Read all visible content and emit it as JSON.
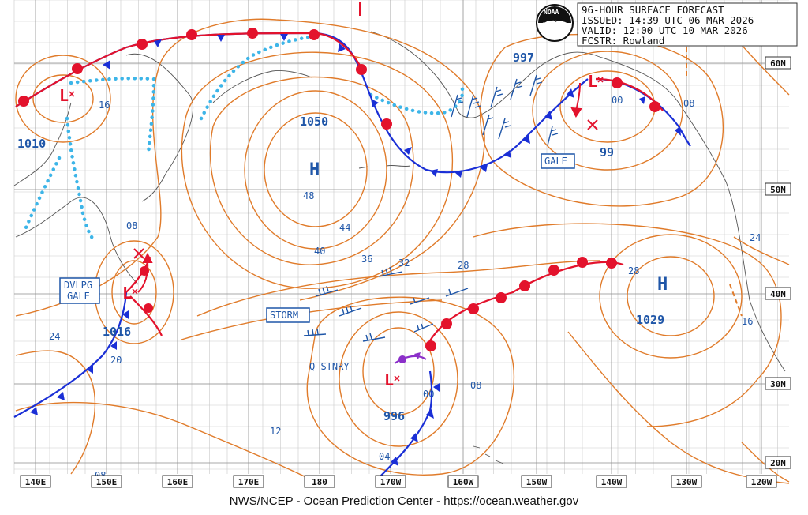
{
  "header": {
    "line1": "96-HOUR SURFACE FORECAST",
    "line2": "ISSUED: 14:39 UTC 06 MAR 2026",
    "line3": "VALID:  12:00 UTC 10 MAR 2026",
    "line4": "FCSTR:  Rowland"
  },
  "logo": {
    "name": "noaa-logo",
    "text": "NOAA"
  },
  "footer": "NWS/NCEP - Ocean Prediction Center - https://ocean.weather.gov",
  "lon_labels": [
    "140E",
    "150E",
    "160E",
    "170E",
    "180",
    "170W",
    "160W",
    "150W",
    "140W",
    "130W",
    "120W"
  ],
  "lat_labels": [
    "60N",
    "50N",
    "40N",
    "30N",
    "20N"
  ],
  "pressure_centers": [
    {
      "type": "H",
      "value": "1050"
    },
    {
      "type": "H",
      "value": "1029"
    },
    {
      "type": "L",
      "value": "997"
    },
    {
      "type": "L",
      "value": "99"
    },
    {
      "type": "L",
      "value": "1010"
    },
    {
      "type": "L",
      "value": "1016"
    },
    {
      "type": "L",
      "value": "996"
    }
  ],
  "isobar_labels": [
    "16",
    "08",
    "00",
    "08",
    "48",
    "44",
    "40",
    "36",
    "32",
    "28",
    "28",
    "24",
    "24",
    "20",
    "16",
    "12",
    "08",
    "04",
    "00",
    "08"
  ],
  "warnings": [
    "GALE",
    "STORM",
    "DVLPG\nGALE",
    "Q-STNRY"
  ],
  "colors": {
    "isobar": "#e07b2a",
    "cold_front": "#1a2fd6",
    "warm_front": "#e3122c",
    "occluded": "#8b2fc9",
    "trough": "#3db5e8",
    "text": "#1f56a8"
  }
}
